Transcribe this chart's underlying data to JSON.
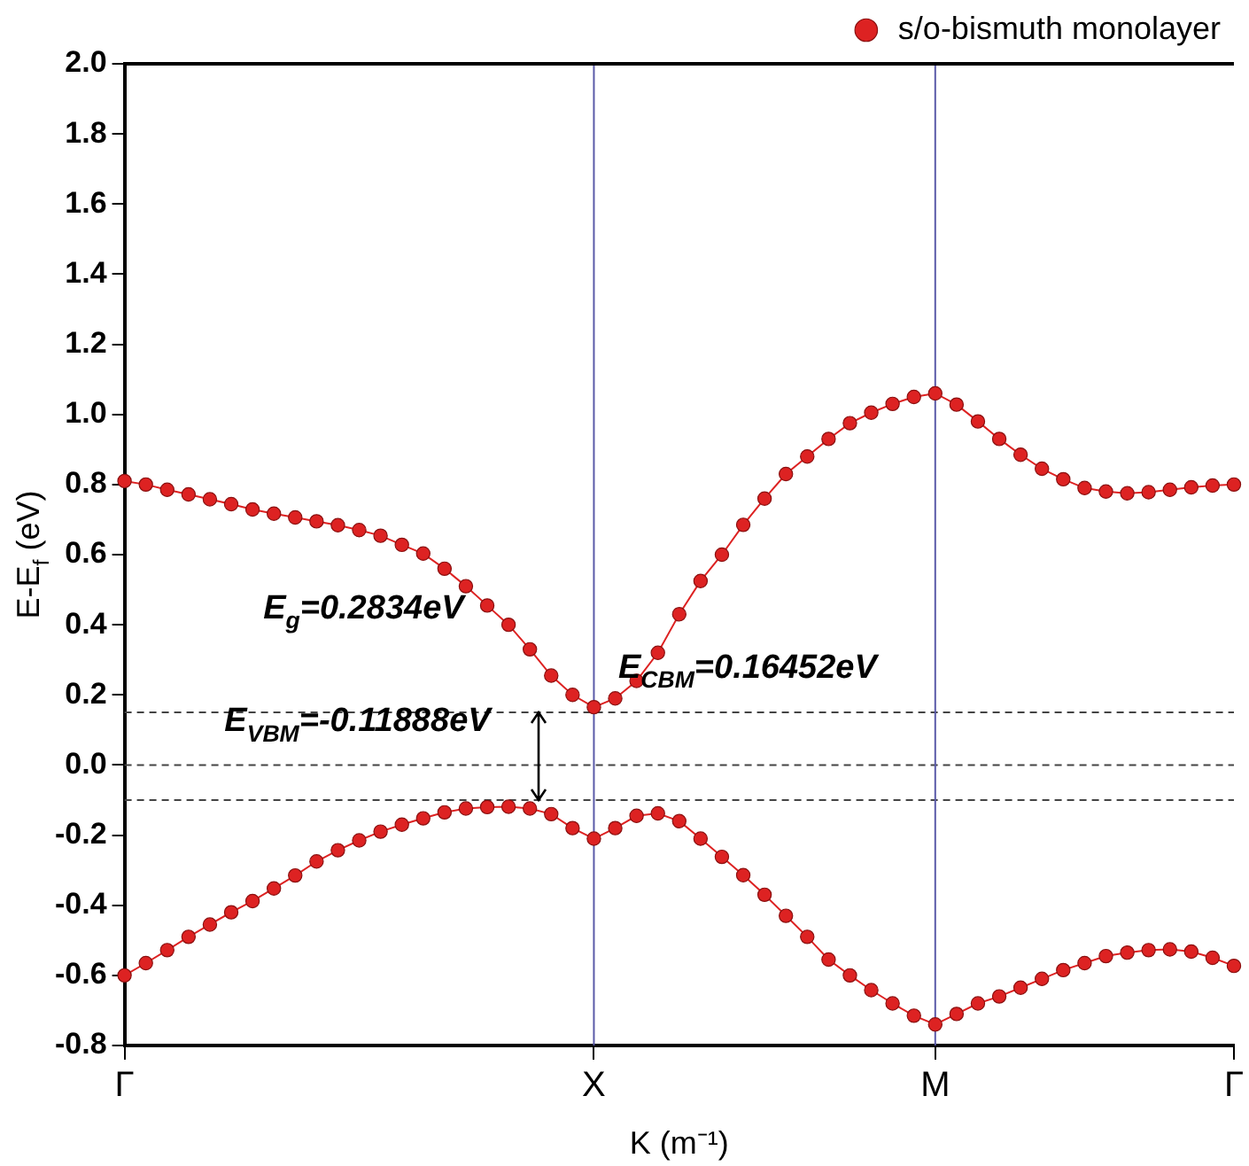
{
  "chart_data": {
    "type": "line",
    "xlabel": "K (m⁻¹)",
    "ylabel": "E-E$_{f}$ (eV)",
    "categories": [
      "Γ",
      null,
      null,
      null,
      null,
      null,
      null,
      null,
      null,
      null,
      null,
      null,
      null,
      null,
      null,
      null,
      null,
      null,
      null,
      null,
      null,
      null,
      "X",
      null,
      null,
      null,
      null,
      null,
      null,
      null,
      null,
      null,
      null,
      null,
      null,
      null,
      null,
      null,
      "M",
      null,
      null,
      null,
      null,
      null,
      null,
      null,
      null,
      null,
      null,
      null,
      null,
      null,
      "Γ"
    ],
    "ylim": [
      -0.8,
      2.0
    ],
    "yticks": [
      {
        "value": -0.8,
        "label": "-0.8"
      },
      {
        "value": -0.6,
        "label": "-0.6"
      },
      {
        "value": -0.4,
        "label": "-0.4"
      },
      {
        "value": -0.2,
        "label": "-0.2"
      },
      {
        "value": 0,
        "label": "0.0"
      },
      {
        "value": 0.2,
        "label": "0.2"
      },
      {
        "value": 0.4,
        "label": "0.4"
      },
      {
        "value": 0.6,
        "label": "0.6"
      },
      {
        "value": 0.8,
        "label": "0.8"
      },
      {
        "value": 1.0,
        "label": "1.0"
      },
      {
        "value": 1.2,
        "label": "1.2"
      },
      {
        "value": 1.4,
        "label": "1.4"
      },
      {
        "value": 1.6,
        "label": "1.6"
      },
      {
        "value": 1.8,
        "label": "1.8"
      },
      {
        "value": 2.0,
        "label": "2.0"
      }
    ],
    "grid": false,
    "legend": "top right",
    "marker": "circle",
    "line_style": "solid",
    "series": [
      {
        "name": "s/o-bismuth monolayer",
        "color": "#dd2222",
        "values": [
          0.81,
          0.8,
          0.785,
          0.772,
          0.758,
          0.744,
          0.729,
          0.717,
          0.706,
          0.695,
          0.684,
          0.67,
          0.654,
          0.628,
          0.603,
          0.56,
          0.51,
          0.455,
          0.4,
          0.33,
          0.255,
          0.2,
          0.165,
          0.19,
          0.24,
          0.32,
          0.43,
          0.525,
          0.6,
          0.685,
          0.76,
          0.83,
          0.88,
          0.93,
          0.975,
          1.005,
          1.03,
          1.05,
          1.06,
          1.028,
          0.98,
          0.93,
          0.885,
          0.845,
          0.815,
          0.79,
          0.78,
          0.775,
          0.778,
          0.785,
          0.792,
          0.797,
          0.8
        ]
      },
      {
        "color": "#dd2222",
        "values": [
          -0.6,
          -0.565,
          -0.528,
          -0.49,
          -0.455,
          -0.42,
          -0.388,
          -0.352,
          -0.315,
          -0.275,
          -0.243,
          -0.215,
          -0.19,
          -0.17,
          -0.152,
          -0.135,
          -0.124,
          -0.12,
          -0.119,
          -0.124,
          -0.14,
          -0.18,
          -0.21,
          -0.18,
          -0.145,
          -0.138,
          -0.16,
          -0.21,
          -0.262,
          -0.314,
          -0.37,
          -0.43,
          -0.49,
          -0.555,
          -0.6,
          -0.642,
          -0.68,
          -0.715,
          -0.74,
          -0.71,
          -0.68,
          -0.66,
          -0.635,
          -0.61,
          -0.585,
          -0.565,
          -0.545,
          -0.535,
          -0.528,
          -0.526,
          -0.532,
          -0.55,
          -0.573
        ]
      }
    ],
    "ref_lines": [
      {
        "axis": "y",
        "value": 0.15,
        "color": "#444444",
        "line_style": "dashed"
      },
      {
        "axis": "y",
        "value": 0,
        "color": "#444444",
        "line_style": "dashed"
      },
      {
        "axis": "y",
        "value": -0.1,
        "color": "#444444",
        "line_style": "dashed"
      },
      {
        "axis": "x",
        "value": "X",
        "color": "#5a5aa8",
        "line_style": "solid"
      },
      {
        "axis": "x",
        "value": "M",
        "color": "#5a5aa8",
        "line_style": "solid"
      }
    ],
    "annotations": [
      "E$_{g}$=0.2834eV",
      "E$_{CBM}$=0.16452eV",
      "E$_{VBM}$=-0.11888eV"
    ]
  }
}
